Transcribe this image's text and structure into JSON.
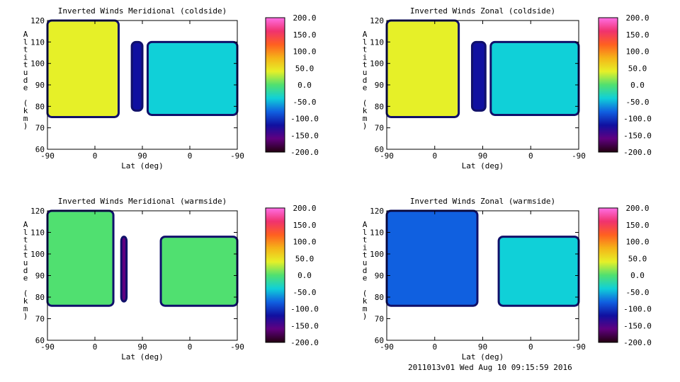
{
  "footer": "2011013v01 Wed Aug 10 09:15:59 2016",
  "colorbar_labels": [
    "200.0",
    "150.0",
    "100.0",
    "50.0",
    "0.0",
    "-50.0",
    "-100.0",
    "-150.0",
    "-200.0"
  ],
  "colorbar_stops": [
    "#ff6ee6",
    "#f0326e",
    "#ff6020",
    "#f5b418",
    "#e6f028",
    "#50e070",
    "#10d0d8",
    "#1060e0",
    "#1010a0",
    "#600080",
    "#220010"
  ],
  "chart_data": [
    {
      "type": "heatmap",
      "title": "Inverted Winds Meridional (coldside)",
      "xlabel": "Lat (deg)",
      "ylabel": "Altitude (km)",
      "xticks": [
        "-90",
        "0",
        "90",
        "0",
        "-90"
      ],
      "yticks": [
        "60",
        "70",
        "80",
        "90",
        "100",
        "110",
        "120"
      ],
      "ylim": [
        60,
        120
      ],
      "colorbar_range": [
        -200,
        200
      ],
      "regions": [
        {
          "x": [
            -90,
            45
          ],
          "y": [
            75,
            120
          ],
          "value": 40
        },
        {
          "x": [
            70,
            90
          ],
          "y": [
            78,
            110
          ],
          "value": -120
        },
        {
          "x": [
            100,
            270
          ],
          "y": [
            76,
            110
          ],
          "value": -30
        }
      ]
    },
    {
      "type": "heatmap",
      "title": "Inverted Winds Zonal (coldside)",
      "xlabel": "Lat (deg)",
      "ylabel": "Altitude (km)",
      "xticks": [
        "-90",
        "0",
        "90",
        "0",
        "-90"
      ],
      "yticks": [
        "60",
        "70",
        "80",
        "90",
        "100",
        "110",
        "120"
      ],
      "ylim": [
        60,
        120
      ],
      "colorbar_range": [
        -200,
        200
      ],
      "regions": [
        {
          "x": [
            -90,
            45
          ],
          "y": [
            75,
            120
          ],
          "value": 30
        },
        {
          "x": [
            70,
            95
          ],
          "y": [
            78,
            110
          ],
          "value": -120
        },
        {
          "x": [
            105,
            270
          ],
          "y": [
            76,
            110
          ],
          "value": -50
        }
      ]
    },
    {
      "type": "heatmap",
      "title": "Inverted Winds Meridional (warmside)",
      "xlabel": "Lat (deg)",
      "ylabel": "Altitude (km)",
      "xticks": [
        "-90",
        "0",
        "90",
        "0",
        "-90"
      ],
      "yticks": [
        "60",
        "70",
        "80",
        "90",
        "100",
        "110",
        "120"
      ],
      "ylim": [
        60,
        120
      ],
      "colorbar_range": [
        -200,
        200
      ],
      "regions": [
        {
          "x": [
            -90,
            35
          ],
          "y": [
            76,
            120
          ],
          "value": 0
        },
        {
          "x": [
            50,
            60
          ],
          "y": [
            78,
            108
          ],
          "value": -150
        },
        {
          "x": [
            125,
            270
          ],
          "y": [
            76,
            108
          ],
          "value": -10
        }
      ]
    },
    {
      "type": "heatmap",
      "title": "Inverted Winds Zonal (warmside)",
      "xlabel": "Lat (deg)",
      "ylabel": "Altitude (km)",
      "xticks": [
        "-90",
        "0",
        "90",
        "0",
        "-90"
      ],
      "yticks": [
        "60",
        "70",
        "80",
        "90",
        "100",
        "110",
        "120"
      ],
      "ylim": [
        60,
        120
      ],
      "colorbar_range": [
        -200,
        200
      ],
      "regions": [
        {
          "x": [
            -90,
            80
          ],
          "y": [
            76,
            120
          ],
          "value": -60
        },
        {
          "x": [
            120,
            270
          ],
          "y": [
            76,
            108
          ],
          "value": -30
        }
      ]
    }
  ]
}
